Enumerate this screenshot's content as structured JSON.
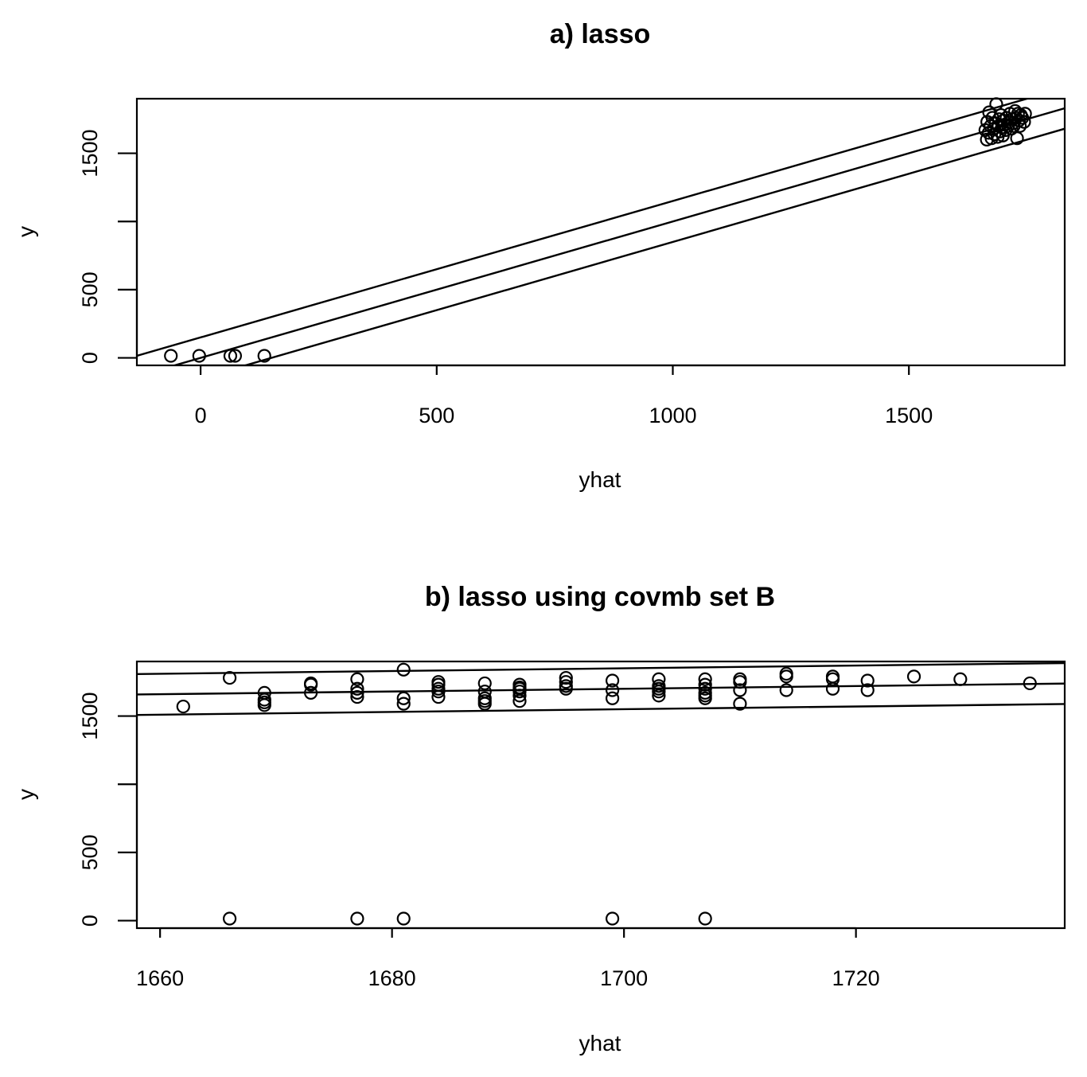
{
  "chart_data": [
    {
      "type": "scatter",
      "title": "a) lasso",
      "xlabel": "yhat",
      "ylabel": "y",
      "xlim": [
        -135,
        1830
      ],
      "ylim": [
        -55,
        1900
      ],
      "xticks": [
        0,
        500,
        1000,
        1500
      ],
      "xtick_labels": [
        "0",
        "500",
        "1000",
        "1500"
      ],
      "yticks": [
        0,
        500,
        1000,
        1500
      ],
      "ytick_labels": [
        "0",
        "500",
        "",
        "1500"
      ],
      "grid": false,
      "lines": [
        {
          "x": [
            -135,
            1830
          ],
          "y": [
            -135,
            1830
          ]
        },
        {
          "x": [
            -135,
            1830
          ],
          "y": [
            15,
            1980
          ]
        },
        {
          "x": [
            -135,
            1830
          ],
          "y": [
            -285,
            1680
          ]
        }
      ],
      "points": [
        {
          "x": -63,
          "y": 15
        },
        {
          "x": -3,
          "y": 15
        },
        {
          "x": 63,
          "y": 15
        },
        {
          "x": 73,
          "y": 15
        },
        {
          "x": 135,
          "y": 15
        },
        {
          "x": 1662,
          "y": 1670
        },
        {
          "x": 1665,
          "y": 1600
        },
        {
          "x": 1666,
          "y": 1730
        },
        {
          "x": 1669,
          "y": 1650
        },
        {
          "x": 1670,
          "y": 1800
        },
        {
          "x": 1673,
          "y": 1700
        },
        {
          "x": 1675,
          "y": 1610
        },
        {
          "x": 1677,
          "y": 1760
        },
        {
          "x": 1680,
          "y": 1680
        },
        {
          "x": 1681,
          "y": 1640
        },
        {
          "x": 1684,
          "y": 1720
        },
        {
          "x": 1685,
          "y": 1860
        },
        {
          "x": 1688,
          "y": 1620
        },
        {
          "x": 1690,
          "y": 1700
        },
        {
          "x": 1691,
          "y": 1750
        },
        {
          "x": 1693,
          "y": 1660
        },
        {
          "x": 1695,
          "y": 1780
        },
        {
          "x": 1697,
          "y": 1690
        },
        {
          "x": 1699,
          "y": 1630
        },
        {
          "x": 1700,
          "y": 1740
        },
        {
          "x": 1703,
          "y": 1710
        },
        {
          "x": 1705,
          "y": 1670
        },
        {
          "x": 1707,
          "y": 1760
        },
        {
          "x": 1710,
          "y": 1700
        },
        {
          "x": 1712,
          "y": 1730
        },
        {
          "x": 1714,
          "y": 1790
        },
        {
          "x": 1717,
          "y": 1680
        },
        {
          "x": 1718,
          "y": 1750
        },
        {
          "x": 1720,
          "y": 1720
        },
        {
          "x": 1722,
          "y": 1700
        },
        {
          "x": 1725,
          "y": 1810
        },
        {
          "x": 1727,
          "y": 1760
        },
        {
          "x": 1729,
          "y": 1610
        },
        {
          "x": 1731,
          "y": 1790
        },
        {
          "x": 1733,
          "y": 1740
        },
        {
          "x": 1735,
          "y": 1700
        },
        {
          "x": 1737,
          "y": 1780
        },
        {
          "x": 1740,
          "y": 1760
        },
        {
          "x": 1744,
          "y": 1730
        },
        {
          "x": 1746,
          "y": 1790
        }
      ]
    },
    {
      "type": "scatter",
      "title": "b) lasso using covmb set B",
      "xlabel": "yhat",
      "ylabel": "y",
      "xlim": [
        1658,
        1738
      ],
      "ylim": [
        -55,
        1900
      ],
      "xticks": [
        1660,
        1680,
        1700,
        1720
      ],
      "xtick_labels": [
        "1660",
        "1680",
        "1700",
        "1720"
      ],
      "yticks": [
        0,
        500,
        1000,
        1500
      ],
      "ytick_labels": [
        "0",
        "500",
        "",
        "1500"
      ],
      "grid": false,
      "lines": [
        {
          "x": [
            1658,
            1738
          ],
          "y": [
            1658,
            1738
          ]
        },
        {
          "x": [
            1658,
            1738
          ],
          "y": [
            1808,
            1888
          ]
        },
        {
          "x": [
            1658,
            1738
          ],
          "y": [
            1508,
            1588
          ]
        }
      ],
      "points": [
        {
          "x": 1662,
          "y": 1570
        },
        {
          "x": 1666,
          "y": 1780
        },
        {
          "x": 1666,
          "y": 15
        },
        {
          "x": 1669,
          "y": 1580
        },
        {
          "x": 1669,
          "y": 1600
        },
        {
          "x": 1669,
          "y": 1620
        },
        {
          "x": 1669,
          "y": 1670
        },
        {
          "x": 1673,
          "y": 1670
        },
        {
          "x": 1673,
          "y": 1730
        },
        {
          "x": 1673,
          "y": 1740
        },
        {
          "x": 1677,
          "y": 1640
        },
        {
          "x": 1677,
          "y": 1670
        },
        {
          "x": 1677,
          "y": 1700
        },
        {
          "x": 1677,
          "y": 1770
        },
        {
          "x": 1677,
          "y": 15
        },
        {
          "x": 1681,
          "y": 1590
        },
        {
          "x": 1681,
          "y": 1630
        },
        {
          "x": 1681,
          "y": 1840
        },
        {
          "x": 1681,
          "y": 15
        },
        {
          "x": 1684,
          "y": 1640
        },
        {
          "x": 1684,
          "y": 1680
        },
        {
          "x": 1684,
          "y": 1700
        },
        {
          "x": 1684,
          "y": 1730
        },
        {
          "x": 1684,
          "y": 1750
        },
        {
          "x": 1688,
          "y": 1590
        },
        {
          "x": 1688,
          "y": 1610
        },
        {
          "x": 1688,
          "y": 1630
        },
        {
          "x": 1688,
          "y": 1680
        },
        {
          "x": 1688,
          "y": 1740
        },
        {
          "x": 1691,
          "y": 1610
        },
        {
          "x": 1691,
          "y": 1650
        },
        {
          "x": 1691,
          "y": 1680
        },
        {
          "x": 1691,
          "y": 1700
        },
        {
          "x": 1691,
          "y": 1710
        },
        {
          "x": 1691,
          "y": 1730
        },
        {
          "x": 1695,
          "y": 1700
        },
        {
          "x": 1695,
          "y": 1720
        },
        {
          "x": 1695,
          "y": 1750
        },
        {
          "x": 1695,
          "y": 1780
        },
        {
          "x": 1699,
          "y": 1630
        },
        {
          "x": 1699,
          "y": 1690
        },
        {
          "x": 1699,
          "y": 1760
        },
        {
          "x": 1699,
          "y": 15
        },
        {
          "x": 1703,
          "y": 1650
        },
        {
          "x": 1703,
          "y": 1680
        },
        {
          "x": 1703,
          "y": 1700
        },
        {
          "x": 1703,
          "y": 1720
        },
        {
          "x": 1703,
          "y": 1770
        },
        {
          "x": 1707,
          "y": 1630
        },
        {
          "x": 1707,
          "y": 1650
        },
        {
          "x": 1707,
          "y": 1670
        },
        {
          "x": 1707,
          "y": 1700
        },
        {
          "x": 1707,
          "y": 1730
        },
        {
          "x": 1707,
          "y": 1770
        },
        {
          "x": 1707,
          "y": 15
        },
        {
          "x": 1710,
          "y": 1590
        },
        {
          "x": 1710,
          "y": 1690
        },
        {
          "x": 1710,
          "y": 1750
        },
        {
          "x": 1710,
          "y": 1770
        },
        {
          "x": 1714,
          "y": 1690
        },
        {
          "x": 1714,
          "y": 1790
        },
        {
          "x": 1714,
          "y": 1810
        },
        {
          "x": 1718,
          "y": 1700
        },
        {
          "x": 1718,
          "y": 1770
        },
        {
          "x": 1718,
          "y": 1790
        },
        {
          "x": 1721,
          "y": 1690
        },
        {
          "x": 1721,
          "y": 1760
        },
        {
          "x": 1725,
          "y": 1790
        },
        {
          "x": 1729,
          "y": 1770
        },
        {
          "x": 1735,
          "y": 1740
        }
      ]
    }
  ]
}
